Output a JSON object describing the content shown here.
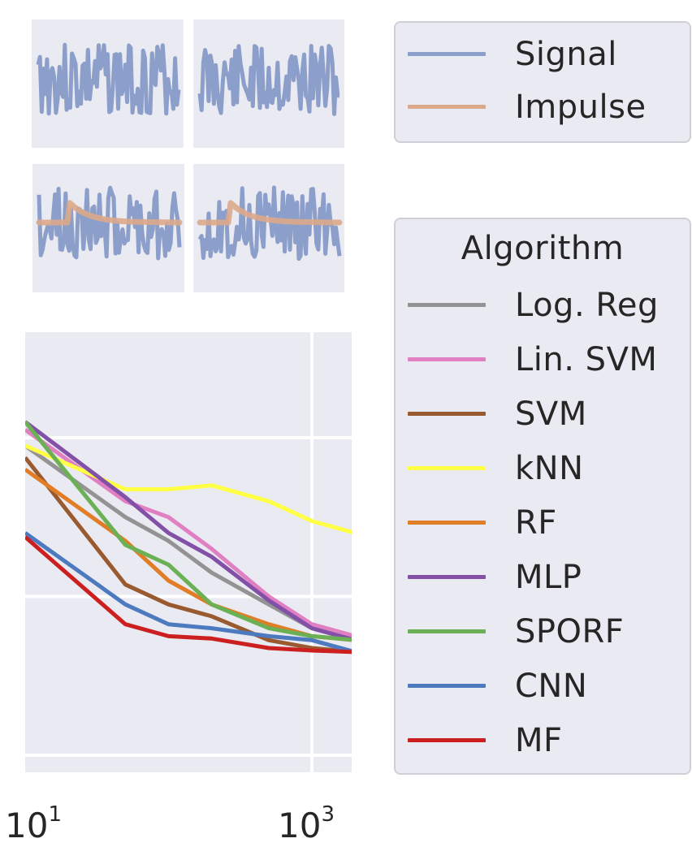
{
  "chart_data": [
    {
      "type": "line",
      "panel": "signal-examples",
      "legend": {
        "placement": "top-right",
        "entries": [
          {
            "label": "Signal",
            "color": "#8c9fcb"
          },
          {
            "label": "Impulse",
            "color": "#dba88a"
          }
        ]
      }
    },
    {
      "type": "line",
      "panel": "main",
      "xscale": "log",
      "xlim": [
        10,
        2000
      ],
      "ylim": [
        0,
        0.55
      ],
      "xticks": [
        {
          "value": 10,
          "base": "10",
          "exp": "1"
        },
        {
          "value": 1000,
          "base": "10",
          "exp": "3"
        }
      ],
      "grid": true,
      "x": [
        10,
        50,
        100,
        200,
        500,
        1000,
        2000
      ],
      "legend": {
        "title": "Algorithm",
        "placement": "right",
        "entries": [
          "Log. Reg",
          "Lin. SVM",
          "SVM",
          "kNN",
          "RF",
          "MLP",
          "SPORF",
          "CNN",
          "MF"
        ]
      },
      "series": [
        {
          "name": "Log. Reg",
          "color": "#939393",
          "values": [
            0.39,
            0.3,
            0.27,
            0.23,
            0.19,
            0.16,
            0.145
          ]
        },
        {
          "name": "Lin. SVM",
          "color": "#e17fc3",
          "values": [
            0.41,
            0.32,
            0.3,
            0.26,
            0.2,
            0.165,
            0.15
          ]
        },
        {
          "name": "SVM",
          "color": "#9a5a2f",
          "values": [
            0.375,
            0.215,
            0.19,
            0.175,
            0.145,
            0.135,
            0.13
          ]
        },
        {
          "name": "kNN",
          "color": "#ffff44",
          "values": [
            0.39,
            0.335,
            0.335,
            0.34,
            0.32,
            0.295,
            0.28
          ]
        },
        {
          "name": "RF",
          "color": "#e07d26",
          "values": [
            0.36,
            0.27,
            0.22,
            0.19,
            0.165,
            0.15,
            0.145
          ]
        },
        {
          "name": "MLP",
          "color": "#8350a8",
          "values": [
            0.42,
            0.325,
            0.28,
            0.25,
            0.195,
            0.16,
            0.145
          ]
        },
        {
          "name": "SPORF",
          "color": "#6cb056",
          "values": [
            0.42,
            0.265,
            0.24,
            0.19,
            0.16,
            0.15,
            0.145
          ]
        },
        {
          "name": "CNN",
          "color": "#4d7abf",
          "values": [
            0.28,
            0.19,
            0.165,
            0.16,
            0.15,
            0.145,
            0.13
          ]
        },
        {
          "name": "MF",
          "color": "#cc2020",
          "values": [
            0.275,
            0.165,
            0.15,
            0.147,
            0.135,
            0.132,
            0.13
          ]
        }
      ]
    }
  ]
}
